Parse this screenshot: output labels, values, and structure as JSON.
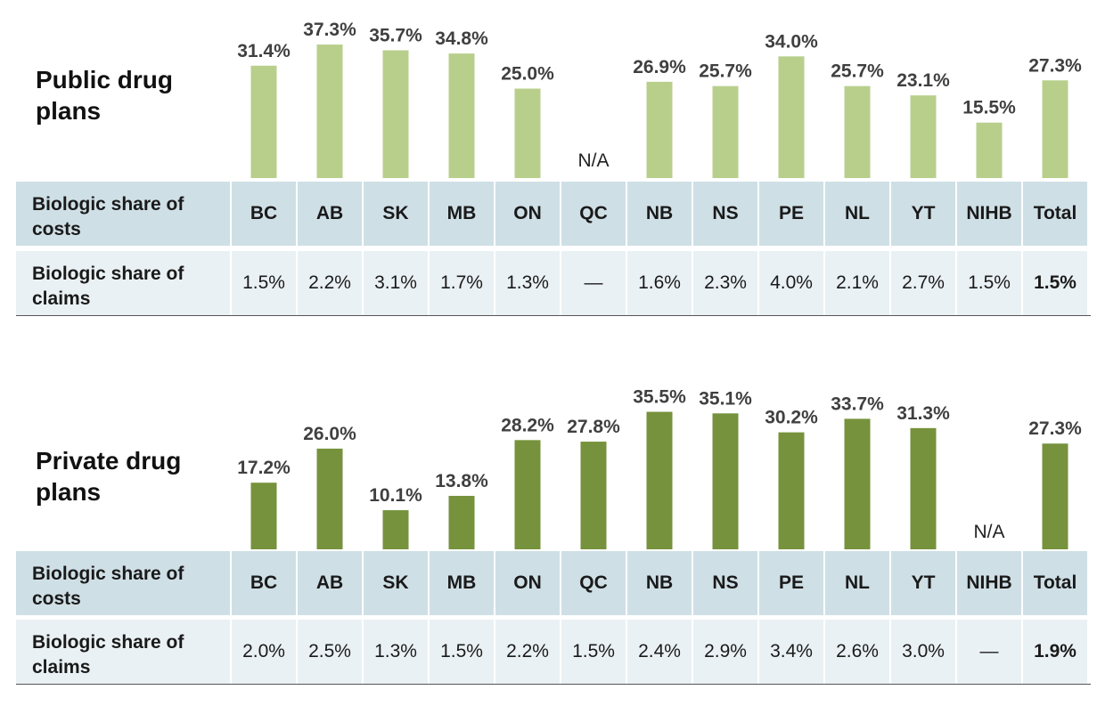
{
  "chart_data": [
    {
      "type": "bar",
      "title": "Public drug plans",
      "categories": [
        "BC",
        "AB",
        "SK",
        "MB",
        "ON",
        "QC",
        "NB",
        "NS",
        "PE",
        "NL",
        "YT",
        "NIHB",
        "Total"
      ],
      "values": [
        31.4,
        37.3,
        35.7,
        34.8,
        25.0,
        null,
        26.9,
        25.7,
        34.0,
        25.7,
        23.1,
        15.5,
        27.3
      ],
      "value_labels": [
        "31.4%",
        "37.3%",
        "35.7%",
        "34.8%",
        "25.0%",
        "N/A",
        "26.9%",
        "25.7%",
        "34.0%",
        "25.7%",
        "23.1%",
        "15.5%",
        "27.3%"
      ],
      "ylim": [
        0,
        40
      ],
      "bar_color": "#b8cf8c",
      "row_labels": {
        "costs": "Biologic share of costs",
        "claims": "Biologic share of claims"
      },
      "claims": [
        "1.5%",
        "2.2%",
        "3.1%",
        "1.7%",
        "1.3%",
        "—",
        "1.6%",
        "2.3%",
        "4.0%",
        "2.1%",
        "2.7%",
        "1.5%",
        "1.5%"
      ]
    },
    {
      "type": "bar",
      "title": "Private drug plans",
      "categories": [
        "BC",
        "AB",
        "SK",
        "MB",
        "ON",
        "QC",
        "NB",
        "NS",
        "PE",
        "NL",
        "YT",
        "NIHB",
        "Total"
      ],
      "values": [
        17.2,
        26.0,
        10.1,
        13.8,
        28.2,
        27.8,
        35.5,
        35.1,
        30.2,
        33.7,
        31.3,
        null,
        27.3
      ],
      "value_labels": [
        "17.2%",
        "26.0%",
        "10.1%",
        "13.8%",
        "28.2%",
        "27.8%",
        "35.5%",
        "35.1%",
        "30.2%",
        "33.7%",
        "31.3%",
        "N/A",
        "27.3%"
      ],
      "ylim": [
        0,
        40
      ],
      "bar_color": "#76923c",
      "row_labels": {
        "costs": "Biologic share of costs",
        "claims": "Biologic share of claims"
      },
      "claims": [
        "2.0%",
        "2.5%",
        "1.3%",
        "1.5%",
        "2.2%",
        "1.5%",
        "2.4%",
        "2.9%",
        "3.4%",
        "2.6%",
        "3.0%",
        "—",
        "1.9%"
      ]
    }
  ]
}
